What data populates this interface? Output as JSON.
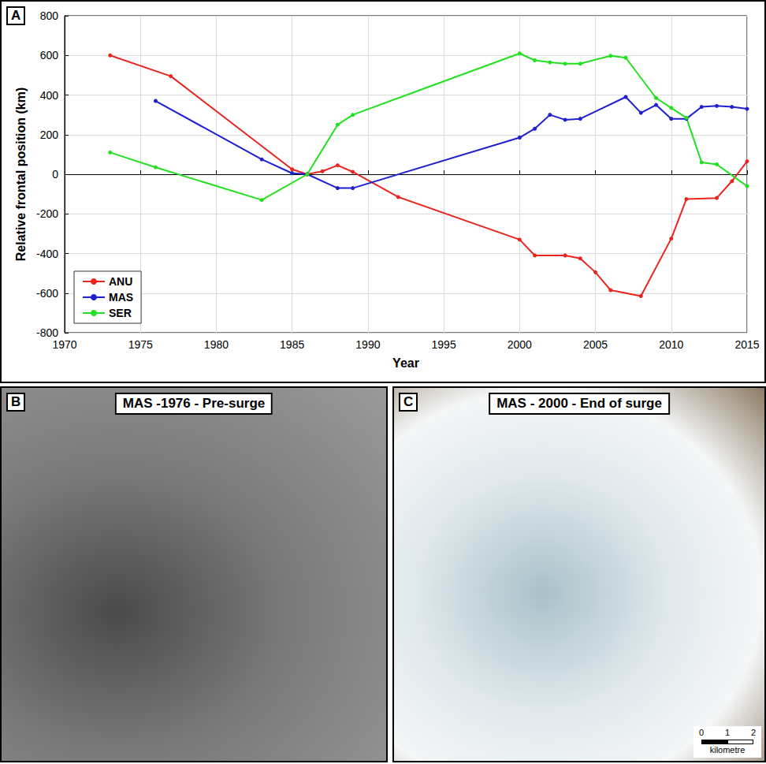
{
  "chart_data": {
    "type": "line",
    "panel": "A",
    "x_label": "Year",
    "y_label": "Relative frontal position (km)",
    "xlim": [
      1970,
      2015
    ],
    "xticks": [
      1970,
      1975,
      1980,
      1985,
      1990,
      1995,
      2000,
      2005,
      2010,
      2015
    ],
    "ylim": [
      -800,
      800
    ],
    "yticks": [
      -800,
      -600,
      -400,
      -200,
      0,
      200,
      400,
      600,
      800
    ],
    "grid": true,
    "legend": "lower left",
    "marker": "circle",
    "line_style": "solid",
    "series": [
      {
        "name": "ANU",
        "color": "#e8251f",
        "x": [
          1973,
          1977,
          1985,
          1986,
          1987,
          1988,
          1989,
          1992,
          2000,
          2001,
          2003,
          2004,
          2005,
          2006,
          2008,
          2010,
          2011,
          2013,
          2014,
          2015
        ],
        "values": [
          600,
          495,
          25,
          0,
          15,
          45,
          12,
          -115,
          -330,
          -410,
          -410,
          -425,
          -495,
          -585,
          -615,
          -325,
          -125,
          -120,
          -35,
          65
        ]
      },
      {
        "name": "MAS",
        "color": "#1f1fd0",
        "x": [
          1976,
          1983,
          1985,
          1986,
          1988,
          1989,
          2000,
          2001,
          2002,
          2003,
          2004,
          2007,
          2008,
          2009,
          2010,
          2011,
          2012,
          2013,
          2014,
          2015
        ],
        "values": [
          370,
          75,
          5,
          0,
          -70,
          -70,
          185,
          230,
          300,
          275,
          280,
          390,
          310,
          350,
          280,
          280,
          340,
          345,
          340,
          330
        ]
      },
      {
        "name": "SER",
        "color": "#22e01f",
        "x": [
          1973,
          1976,
          1983,
          1986,
          1988,
          1989,
          2000,
          2001,
          2002,
          2003,
          2004,
          2006,
          2007,
          2009,
          2010,
          2011,
          2012,
          2013,
          2015
        ],
        "values": [
          110,
          35,
          -130,
          0,
          250,
          300,
          610,
          575,
          565,
          558,
          558,
          598,
          588,
          385,
          335,
          285,
          60,
          50,
          -60
        ]
      }
    ]
  },
  "images": [
    {
      "panel": "B",
      "title": "MAS -1976 - Pre-surge"
    },
    {
      "panel": "C",
      "title": "MAS - 2000 - End of surge",
      "scale_bar": {
        "ticks": [
          0,
          1,
          2
        ],
        "unit": "kilometre"
      }
    }
  ]
}
